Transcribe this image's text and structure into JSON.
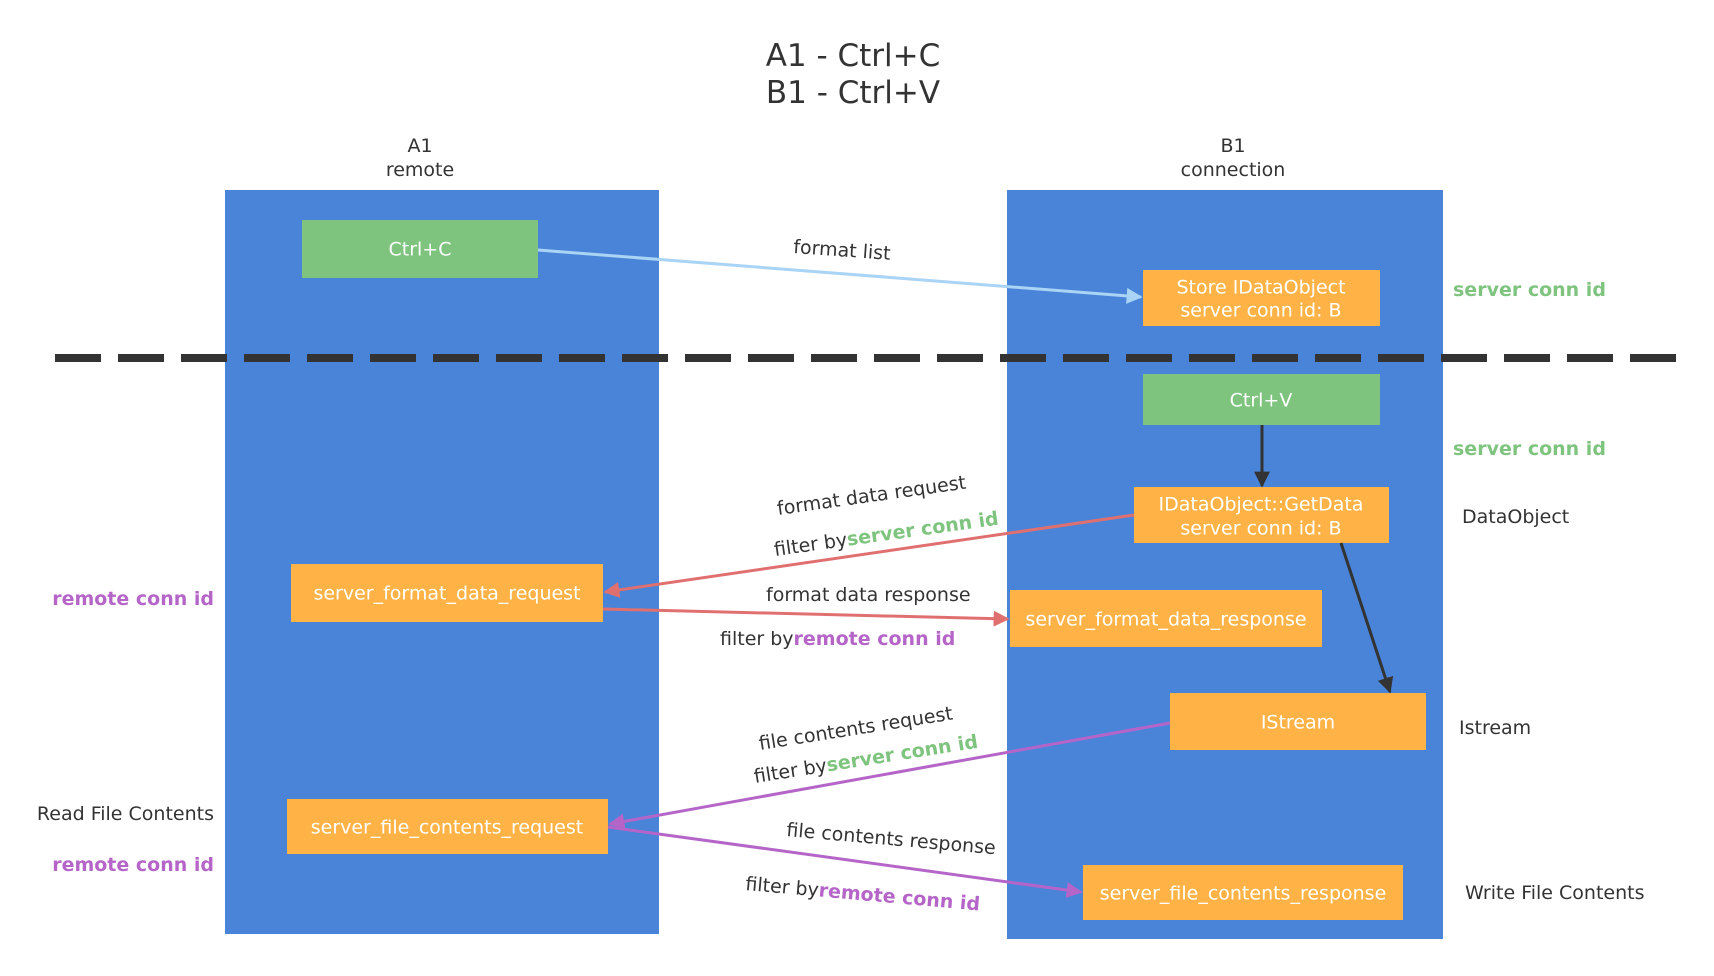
{
  "title": {
    "line1": "A1 - Ctrl+C",
    "line2": "B1 - Ctrl+V"
  },
  "lanes": {
    "left": {
      "name": "A1",
      "role": "remote"
    },
    "right": {
      "name": "B1",
      "role": "connection"
    }
  },
  "boxes": {
    "ctrl_c": "Ctrl+C",
    "store": {
      "line1": "Store IDataObject",
      "line2": "server conn id: B"
    },
    "ctrl_v": "Ctrl+V",
    "getdata": {
      "line1": "IDataObject::GetData",
      "line2": "server conn id: B"
    },
    "format_req": "server_format_data_request",
    "format_resp": "server_format_data_response",
    "istream": "IStream",
    "file_req": "server_file_contents_request",
    "file_resp": "server_file_contents_response"
  },
  "arrows": {
    "format_list": "format list",
    "format_data_request": "format data request",
    "format_data_response": "format data response",
    "file_contents_request": "file contents request",
    "file_contents_response": "file contents response",
    "filter_by": "filter by",
    "server_conn_id": "server conn id",
    "remote_conn_id": "remote conn id"
  },
  "side_labels": {
    "server_conn_id_1": "server conn id",
    "server_conn_id_2": "server conn id",
    "data_object": "DataObject",
    "istream": "Istream",
    "write_file_contents": "Write File Contents",
    "remote_conn_id_1": "remote conn id",
    "read_file_contents": "Read File Contents",
    "remote_conn_id_2": "remote conn id"
  },
  "colors": {
    "lane": "#4a84d8",
    "orange": "#ffb347",
    "green_box": "#7ec47f",
    "red_arrow": "#e07070",
    "purple_arrow": "#b565c8",
    "light_blue_arrow": "#aad4f5",
    "dashed": "#333333"
  }
}
